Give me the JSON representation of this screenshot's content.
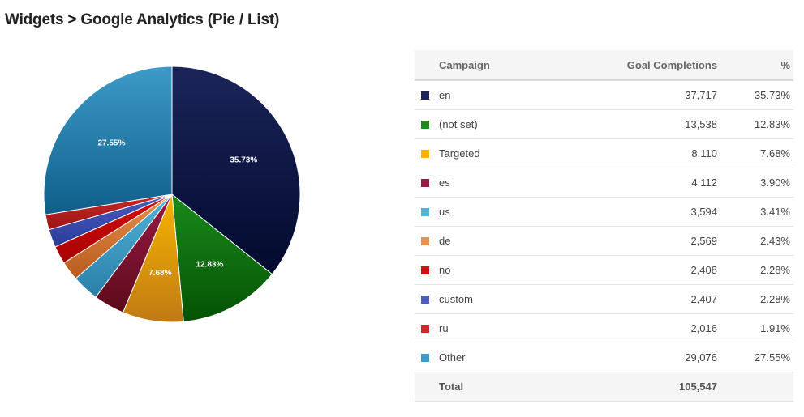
{
  "page": {
    "title": "Widgets > Google Analytics (Pie / List)"
  },
  "table": {
    "headers": {
      "campaign": "Campaign",
      "goal": "Goal Completions",
      "pct": "%"
    },
    "total": {
      "label": "Total",
      "value": "105,547"
    }
  },
  "chart_data": {
    "type": "pie",
    "slices": [
      {
        "label": "en",
        "value": 37717,
        "value_text": "37,717",
        "pct_text": "35.73%",
        "color": "#1b2559",
        "shade": "#020a2e",
        "show_label": true
      },
      {
        "label": "(not set)",
        "value": 13538,
        "value_text": "13,538",
        "pct_text": "12.83%",
        "color": "#1a8a1a",
        "shade": "#045204",
        "show_label": true
      },
      {
        "label": "Targeted",
        "value": 8110,
        "value_text": "8,110",
        "pct_text": "7.68%",
        "color": "#f7b500",
        "shade": "#c07a14",
        "show_label": true
      },
      {
        "label": "es",
        "value": 4112,
        "value_text": "4,112",
        "pct_text": "3.90%",
        "color": "#9a1a47",
        "shade": "#5c0a1a",
        "show_label": false
      },
      {
        "label": "us",
        "value": 3594,
        "value_text": "3,594",
        "pct_text": "3.41%",
        "color": "#52b3d9",
        "shade": "#2a7fa8",
        "show_label": false
      },
      {
        "label": "de",
        "value": 2569,
        "value_text": "2,569",
        "pct_text": "2.43%",
        "color": "#e8914f",
        "shade": "#b85a1e",
        "show_label": false
      },
      {
        "label": "no",
        "value": 2408,
        "value_text": "2,408",
        "pct_text": "2.28%",
        "color": "#d41010",
        "shade": "#a80000",
        "show_label": false
      },
      {
        "label": "custom",
        "value": 2407,
        "value_text": "2,407",
        "pct_text": "2.28%",
        "color": "#4a5fc1",
        "shade": "#2a3a9a",
        "show_label": false
      },
      {
        "label": "ru",
        "value": 2016,
        "value_text": "2,016",
        "pct_text": "1.91%",
        "color": "#cc2a2a",
        "shade": "#9a1414",
        "show_label": false
      },
      {
        "label": "Other",
        "value": 29076,
        "value_text": "29,076",
        "pct_text": "27.55%",
        "color": "#3d9ac8",
        "shade": "#0f5e8a",
        "show_label": true
      }
    ]
  }
}
